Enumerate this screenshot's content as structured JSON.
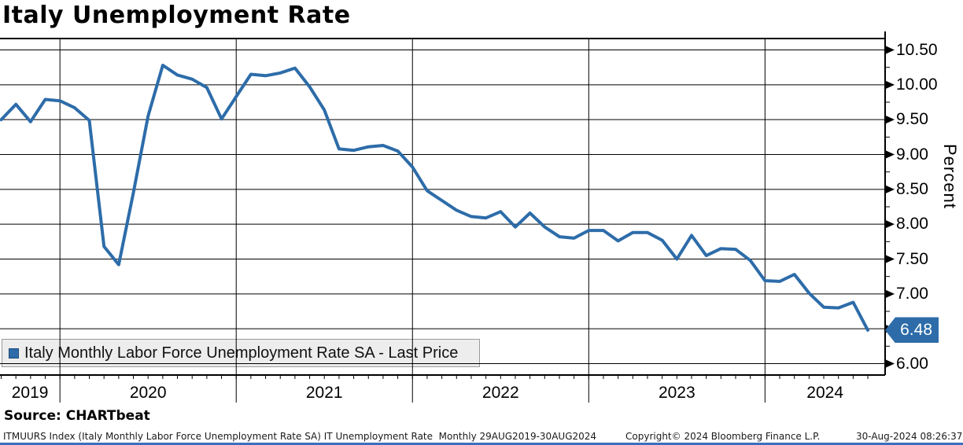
{
  "title": "Italy Unemployment Rate",
  "legend": {
    "label": "Italy Monthly Labor Force Unemployment Rate SA - Last Price"
  },
  "y_axis": {
    "title": "Percent",
    "tick_labels": [
      "10.50",
      "10.00",
      "9.50",
      "9.00",
      "8.50",
      "8.00",
      "7.50",
      "7.00",
      "6.00"
    ]
  },
  "x_axis": {
    "year_labels": [
      "2019",
      "2020",
      "2021",
      "2022",
      "2023",
      "2024"
    ]
  },
  "last_price": {
    "value": "6.48"
  },
  "source_line": "Source: CHARTbeat",
  "footer": {
    "left": "ITMUURS Index (Italy Monthly Labor Force Unemployment Rate SA) IT Unemployment Rate  Monthly 29AUG2019-30AUG2024",
    "copyright": "Copyright© 2024 Bloomberg Finance L.P.",
    "datetime": "30-Aug-2024 08:26:37"
  },
  "colors": {
    "line": "#2d6ca9",
    "tag_bg": "#2d6ca9",
    "legend_swatch": "#2d6ca9",
    "bottom_bar": "#3d6ec0",
    "grid": "#000000"
  },
  "chart_data": {
    "type": "line",
    "title": "Italy Unemployment Rate",
    "series_name": "Italy Monthly Labor Force Unemployment Rate SA - Last Price",
    "ylabel": "Percent",
    "ylim": [
      5.85,
      10.66
    ],
    "yticks": [
      6.0,
      6.5,
      7.0,
      7.5,
      8.0,
      8.5,
      9.0,
      9.5,
      10.0,
      10.5
    ],
    "grid": true,
    "period": "Monthly 29AUG2019-30AUG2024",
    "last_value": 6.48,
    "months": [
      "2019-09",
      "2019-10",
      "2019-11",
      "2019-12",
      "2020-01",
      "2020-02",
      "2020-03",
      "2020-04",
      "2020-05",
      "2020-06",
      "2020-07",
      "2020-08",
      "2020-09",
      "2020-10",
      "2020-11",
      "2020-12",
      "2021-01",
      "2021-02",
      "2021-03",
      "2021-04",
      "2021-05",
      "2021-06",
      "2021-07",
      "2021-08",
      "2021-09",
      "2021-10",
      "2021-11",
      "2021-12",
      "2022-01",
      "2022-02",
      "2022-03",
      "2022-04",
      "2022-05",
      "2022-06",
      "2022-07",
      "2022-08",
      "2022-09",
      "2022-10",
      "2022-11",
      "2022-12",
      "2023-01",
      "2023-02",
      "2023-03",
      "2023-04",
      "2023-05",
      "2023-06",
      "2023-07",
      "2023-08",
      "2023-09",
      "2023-10",
      "2023-11",
      "2023-12",
      "2024-01",
      "2024-02",
      "2024-03",
      "2024-04",
      "2024-05",
      "2024-06",
      "2024-07",
      "2024-08"
    ],
    "values": [
      9.5,
      9.72,
      9.47,
      9.79,
      9.77,
      9.67,
      9.49,
      7.68,
      7.42,
      8.45,
      9.55,
      10.28,
      10.14,
      10.08,
      9.96,
      9.51,
      9.83,
      10.15,
      10.13,
      10.17,
      10.24,
      9.97,
      9.64,
      9.08,
      9.06,
      9.11,
      9.13,
      9.05,
      8.82,
      8.48,
      8.34,
      8.2,
      8.11,
      8.09,
      8.18,
      7.96,
      8.16,
      7.96,
      7.82,
      7.8,
      7.91,
      7.91,
      7.76,
      7.88,
      7.88,
      7.77,
      7.5,
      7.84,
      7.55,
      7.65,
      7.64,
      7.48,
      7.19,
      7.18,
      7.28,
      7.01,
      6.81,
      6.8,
      6.88,
      6.48
    ]
  }
}
